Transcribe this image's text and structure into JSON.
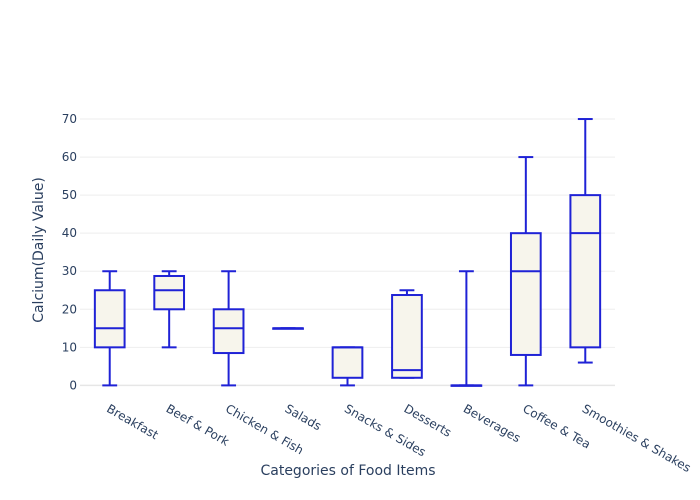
{
  "chart_data": {
    "type": "box",
    "title": "",
    "xlabel": "Categories of Food Items",
    "ylabel": "Calcium(Daily Value)",
    "ylim": [
      -2,
      75
    ],
    "yticks": [
      0,
      10,
      20,
      30,
      40,
      50,
      60,
      70
    ],
    "grid": true,
    "colors": {
      "line": "#1f22d6",
      "fill": "#f7f5ec"
    },
    "categories": [
      "Breakfast",
      "Beef & Pork",
      "Chicken & Fish",
      "Salads",
      "Snacks & Sides",
      "Desserts",
      "Beverages",
      "Coffee & Tea",
      "Smoothies & Shakes"
    ],
    "boxes": [
      {
        "min": 0,
        "q1": 10,
        "median": 15,
        "q3": 25,
        "max": 30
      },
      {
        "min": 10,
        "q1": 20,
        "median": 25,
        "q3": 28.75,
        "max": 30
      },
      {
        "min": 0,
        "q1": 8.5,
        "median": 15,
        "q3": 20,
        "max": 30
      },
      {
        "min": 15,
        "q1": 15,
        "median": 15,
        "q3": 15,
        "max": 15
      },
      {
        "min": 0,
        "q1": 2,
        "median": 10,
        "q3": 10,
        "max": 10
      },
      {
        "min": 2,
        "q1": 2,
        "median": 4,
        "q3": 23.75,
        "max": 25
      },
      {
        "min": 0,
        "q1": 0,
        "median": 0,
        "q3": 0,
        "max": 30
      },
      {
        "min": 0,
        "q1": 8,
        "median": 30,
        "q3": 40,
        "max": 60
      },
      {
        "min": 6,
        "q1": 10,
        "median": 40,
        "q3": 50,
        "max": 70
      }
    ]
  }
}
